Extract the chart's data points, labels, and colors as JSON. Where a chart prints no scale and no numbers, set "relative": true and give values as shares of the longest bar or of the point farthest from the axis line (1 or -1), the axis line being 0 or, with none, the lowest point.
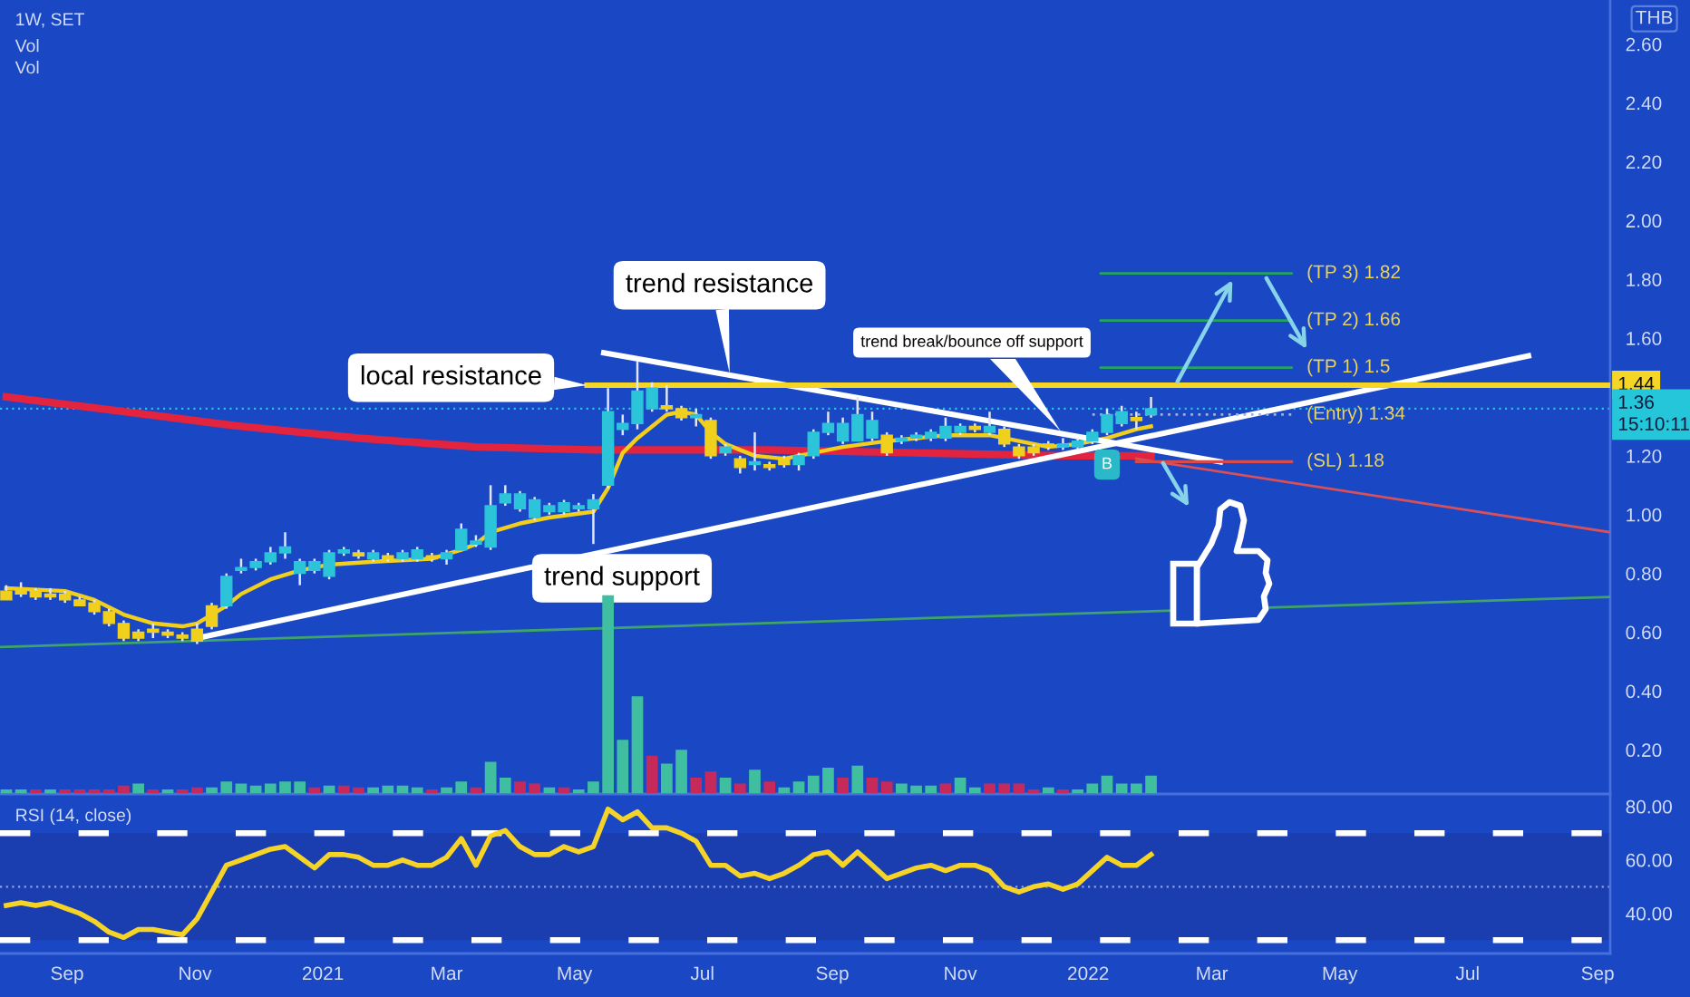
{
  "chart_data": [
    {
      "type": "candlestick",
      "title": "1W, SET",
      "ylabel": "THB",
      "x": [
        "2020-08-03",
        "2020-08-10",
        "2020-08-17",
        "2020-08-24",
        "2020-08-31",
        "2020-09-07",
        "2020-09-14",
        "2020-09-21",
        "2020-09-28",
        "2020-10-05",
        "2020-10-12",
        "2020-10-19",
        "2020-10-26",
        "2020-11-02",
        "2020-11-09",
        "2020-11-16",
        "2020-11-23",
        "2020-11-30",
        "2020-12-07",
        "2020-12-14",
        "2020-12-21",
        "2020-12-28",
        "2021-01-04",
        "2021-01-11",
        "2021-01-18",
        "2021-01-25",
        "2021-02-01",
        "2021-02-08",
        "2021-02-15",
        "2021-02-22",
        "2021-03-01",
        "2021-03-08",
        "2021-03-15",
        "2021-03-22",
        "2021-03-29",
        "2021-04-05",
        "2021-04-12",
        "2021-04-19",
        "2021-04-26",
        "2021-05-03",
        "2021-05-10",
        "2021-05-17",
        "2021-05-24",
        "2021-05-31",
        "2021-06-07",
        "2021-06-14",
        "2021-06-21",
        "2021-06-28",
        "2021-07-05",
        "2021-07-12",
        "2021-07-19",
        "2021-07-26",
        "2021-08-02",
        "2021-08-09",
        "2021-08-16",
        "2021-08-23",
        "2021-08-30",
        "2021-09-06",
        "2021-09-13",
        "2021-09-20",
        "2021-09-27",
        "2021-10-04",
        "2021-10-11",
        "2021-10-18",
        "2021-10-25",
        "2021-11-01",
        "2021-11-08",
        "2021-11-15",
        "2021-11-22",
        "2021-11-29",
        "2021-12-06",
        "2021-12-13",
        "2021-12-20",
        "2021-12-27",
        "2022-01-03",
        "2022-01-10",
        "2022-01-17",
        "2022-01-24",
        "2022-01-31"
      ],
      "ohlc": [
        [
          0.74,
          0.76,
          0.71,
          0.71
        ],
        [
          0.75,
          0.77,
          0.72,
          0.73
        ],
        [
          0.74,
          0.75,
          0.71,
          0.72
        ],
        [
          0.73,
          0.75,
          0.71,
          0.72
        ],
        [
          0.73,
          0.74,
          0.7,
          0.71
        ],
        [
          0.71,
          0.72,
          0.69,
          0.69
        ],
        [
          0.7,
          0.71,
          0.66,
          0.67
        ],
        [
          0.67,
          0.68,
          0.62,
          0.63
        ],
        [
          0.63,
          0.64,
          0.57,
          0.58
        ],
        [
          0.6,
          0.61,
          0.57,
          0.58
        ],
        [
          0.61,
          0.63,
          0.58,
          0.6
        ],
        [
          0.6,
          0.61,
          0.58,
          0.59
        ],
        [
          0.59,
          0.6,
          0.57,
          0.58
        ],
        [
          0.61,
          0.63,
          0.56,
          0.57
        ],
        [
          0.69,
          0.7,
          0.61,
          0.62
        ],
        [
          0.69,
          0.8,
          0.68,
          0.79
        ],
        [
          0.81,
          0.85,
          0.8,
          0.82
        ],
        [
          0.82,
          0.85,
          0.81,
          0.84
        ],
        [
          0.84,
          0.89,
          0.83,
          0.87
        ],
        [
          0.87,
          0.94,
          0.85,
          0.89
        ],
        [
          0.8,
          0.85,
          0.76,
          0.84
        ],
        [
          0.81,
          0.85,
          0.8,
          0.84
        ],
        [
          0.79,
          0.88,
          0.78,
          0.87
        ],
        [
          0.87,
          0.89,
          0.86,
          0.88
        ],
        [
          0.87,
          0.88,
          0.85,
          0.86
        ],
        [
          0.85,
          0.88,
          0.84,
          0.87
        ],
        [
          0.86,
          0.87,
          0.84,
          0.85
        ],
        [
          0.85,
          0.88,
          0.84,
          0.87
        ],
        [
          0.85,
          0.89,
          0.84,
          0.88
        ],
        [
          0.86,
          0.87,
          0.84,
          0.85
        ],
        [
          0.85,
          0.88,
          0.83,
          0.87
        ],
        [
          0.88,
          0.97,
          0.88,
          0.95
        ],
        [
          0.9,
          0.93,
          0.89,
          0.91
        ],
        [
          0.89,
          1.1,
          0.88,
          1.03
        ],
        [
          1.04,
          1.1,
          1.03,
          1.07
        ],
        [
          1.02,
          1.08,
          1.01,
          1.07
        ],
        [
          0.99,
          1.06,
          0.98,
          1.05
        ],
        [
          1.01,
          1.04,
          1.0,
          1.03
        ],
        [
          1.01,
          1.05,
          1.0,
          1.04
        ],
        [
          1.02,
          1.04,
          1.01,
          1.03
        ],
        [
          1.02,
          1.07,
          0.9,
          1.05
        ],
        [
          1.1,
          1.43,
          1.09,
          1.35
        ],
        [
          1.29,
          1.34,
          1.27,
          1.31
        ],
        [
          1.31,
          1.52,
          1.29,
          1.42
        ],
        [
          1.36,
          1.45,
          1.35,
          1.43
        ],
        [
          1.37,
          1.44,
          1.35,
          1.36
        ],
        [
          1.36,
          1.37,
          1.32,
          1.33
        ],
        [
          1.33,
          1.36,
          1.3,
          1.34
        ],
        [
          1.32,
          1.33,
          1.19,
          1.2
        ],
        [
          1.21,
          1.24,
          1.2,
          1.23
        ],
        [
          1.19,
          1.2,
          1.14,
          1.16
        ],
        [
          1.17,
          1.28,
          1.15,
          1.18
        ],
        [
          1.17,
          1.18,
          1.15,
          1.16
        ],
        [
          1.19,
          1.2,
          1.16,
          1.17
        ],
        [
          1.17,
          1.21,
          1.15,
          1.2
        ],
        [
          1.2,
          1.29,
          1.19,
          1.28
        ],
        [
          1.28,
          1.35,
          1.27,
          1.31
        ],
        [
          1.25,
          1.33,
          1.24,
          1.31
        ],
        [
          1.25,
          1.4,
          1.25,
          1.34
        ],
        [
          1.26,
          1.35,
          1.25,
          1.32
        ],
        [
          1.27,
          1.28,
          1.2,
          1.21
        ],
        [
          1.25,
          1.27,
          1.24,
          1.26
        ],
        [
          1.26,
          1.28,
          1.25,
          1.27
        ],
        [
          1.26,
          1.29,
          1.25,
          1.28
        ],
        [
          1.26,
          1.33,
          1.25,
          1.3
        ],
        [
          1.28,
          1.31,
          1.27,
          1.3
        ],
        [
          1.3,
          1.31,
          1.28,
          1.29
        ],
        [
          1.28,
          1.35,
          1.27,
          1.3
        ],
        [
          1.29,
          1.3,
          1.23,
          1.24
        ],
        [
          1.23,
          1.24,
          1.19,
          1.2
        ],
        [
          1.23,
          1.24,
          1.2,
          1.21
        ],
        [
          1.24,
          1.25,
          1.22,
          1.23
        ],
        [
          1.23,
          1.26,
          1.22,
          1.24
        ],
        [
          1.23,
          1.26,
          1.22,
          1.25
        ],
        [
          1.25,
          1.29,
          1.24,
          1.28
        ],
        [
          1.28,
          1.36,
          1.27,
          1.34
        ],
        [
          1.31,
          1.37,
          1.3,
          1.35
        ],
        [
          1.33,
          1.35,
          1.29,
          1.32
        ],
        [
          1.34,
          1.4,
          1.33,
          1.36
        ]
      ],
      "colors": [
        "#f0d01c",
        "#f0d01c",
        "#f0d01c",
        "#f0d01c",
        "#f0d01c",
        "#f0d01c",
        "#f0d01c",
        "#f0d01c",
        "#f0d01c",
        "#f0d01c",
        "#f0d01c",
        "#f0d01c",
        "#f0d01c",
        "#f0d01c",
        "#f0d01c",
        "#2bc4d8",
        "#2bc4d8",
        "#2bc4d8",
        "#2bc4d8",
        "#2bc4d8",
        "#2bc4d8",
        "#2bc4d8",
        "#2bc4d8",
        "#2bc4d8",
        "#f0d01c",
        "#2bc4d8",
        "#f0d01c",
        "#2bc4d8",
        "#2bc4d8",
        "#f0d01c",
        "#2bc4d8",
        "#2bc4d8",
        "#2bc4d8",
        "#2bc4d8",
        "#2bc4d8",
        "#2bc4d8",
        "#2bc4d8",
        "#2bc4d8",
        "#2bc4d8",
        "#2bc4d8",
        "#2bc4d8",
        "#2bc4d8",
        "#2bc4d8",
        "#2bc4d8",
        "#2bc4d8",
        "#f0d01c",
        "#f0d01c",
        "#2bc4d8",
        "#f0d01c",
        "#2bc4d8",
        "#f0d01c",
        "#2bc4d8",
        "#f0d01c",
        "#f0d01c",
        "#2bc4d8",
        "#2bc4d8",
        "#2bc4d8",
        "#2bc4d8",
        "#2bc4d8",
        "#2bc4d8",
        "#f0d01c",
        "#2bc4d8",
        "#2bc4d8",
        "#2bc4d8",
        "#2bc4d8",
        "#2bc4d8",
        "#f0d01c",
        "#2bc4d8",
        "#f0d01c",
        "#f0d01c",
        "#f0d01c",
        "#f0d01c",
        "#2bc4d8",
        "#2bc4d8",
        "#2bc4d8",
        "#2bc4d8",
        "#2bc4d8",
        "#f0d01c",
        "#2bc4d8"
      ],
      "series": [
        {
          "type": "line",
          "x": [
            "2020-07-31",
            "2022-09-07"
          ],
          "values": [
            0.55,
            0.72
          ],
          "color": "#3fa46a"
        },
        {
          "type": "line",
          "x": [
            "2020-08-03",
            "2020-09-28",
            "2020-11-23",
            "2021-01-18",
            "2021-03-15",
            "2021-05-10",
            "2021-08-02",
            "2021-10-11",
            "2021-12-20",
            "2022-01-31"
          ],
          "values": [
            1.4,
            1.35,
            1.3,
            1.26,
            1.23,
            1.22,
            1.22,
            1.21,
            1.2,
            1.2
          ],
          "color": "#e3243f"
        },
        {
          "type": "line",
          "x": [
            "2020-08-03",
            "2020-08-31",
            "2020-09-14",
            "2020-09-28",
            "2020-10-12",
            "2020-10-26",
            "2020-11-02",
            "2020-11-09",
            "2020-11-16",
            "2020-11-23",
            "2020-12-07",
            "2020-12-21",
            "2021-01-04",
            "2021-01-25",
            "2021-02-22",
            "2021-03-08",
            "2021-03-15",
            "2021-03-22",
            "2021-04-05",
            "2021-04-19",
            "2021-05-10",
            "2021-05-17",
            "2021-05-24",
            "2021-05-31",
            "2021-06-07",
            "2021-06-14",
            "2021-06-21",
            "2021-06-28",
            "2021-07-05",
            "2021-07-12",
            "2021-07-26",
            "2021-08-09",
            "2021-08-23",
            "2021-09-06",
            "2021-09-27",
            "2021-10-25",
            "2021-11-15",
            "2021-11-29",
            "2021-12-13",
            "2021-12-27",
            "2022-01-10",
            "2022-01-24",
            "2022-01-31"
          ],
          "values": [
            0.75,
            0.74,
            0.71,
            0.66,
            0.63,
            0.62,
            0.63,
            0.66,
            0.69,
            0.73,
            0.78,
            0.81,
            0.83,
            0.84,
            0.85,
            0.88,
            0.9,
            0.94,
            0.97,
            0.99,
            1.01,
            1.09,
            1.21,
            1.26,
            1.3,
            1.34,
            1.35,
            1.34,
            1.28,
            1.24,
            1.2,
            1.19,
            1.21,
            1.23,
            1.25,
            1.27,
            1.27,
            1.25,
            1.23,
            1.24,
            1.26,
            1.29,
            1.3
          ],
          "color": "#f2cf1d"
        },
        {
          "type": "line",
          "x": [
            "2020-11-02",
            "2022-07-30"
          ],
          "values": [
            0.58,
            1.54
          ],
          "color": "#ffffff"
        },
        {
          "type": "line",
          "x": [
            "2021-05-15",
            "2022-03-05"
          ],
          "values": [
            1.55,
            1.18
          ],
          "color": "#ffffff"
        },
        {
          "type": "line",
          "x": [
            "2022-01-24",
            "2022-09-07"
          ],
          "values": [
            1.19,
            0.94
          ],
          "color": "#d8505a"
        },
        {
          "type": "line",
          "x": [
            "2021-05-07",
            "2022-09-07"
          ],
          "values": [
            1.44,
            1.44
          ],
          "color": "#f5d526",
          "value_labels": [
            null,
            "1.44"
          ]
        },
        {
          "type": "line",
          "name": "(TP 3) 1.82",
          "x": [
            "2022-01-07",
            "2022-04-08"
          ],
          "values": [
            1.82,
            1.82
          ],
          "color": "#23a45f"
        },
        {
          "type": "line",
          "name": "(TP 2) 1.66",
          "x": [
            "2022-01-07",
            "2022-04-08"
          ],
          "values": [
            1.66,
            1.66
          ],
          "color": "#23a45f"
        },
        {
          "type": "line",
          "name": "(TP 1) 1.5",
          "x": [
            "2022-01-07",
            "2022-04-08"
          ],
          "values": [
            1.5,
            1.5
          ],
          "color": "#23a45f"
        },
        {
          "type": "line",
          "name": "(Entry) 1.34",
          "x": [
            "2022-01-03",
            "2022-04-08"
          ],
          "values": [
            1.34,
            1.34
          ],
          "color": "#9fb3e0",
          "line_style": "dotted"
        },
        {
          "type": "line",
          "name": "(SL) 1.18",
          "x": [
            "2022-01-24",
            "2022-04-08"
          ],
          "values": [
            1.18,
            1.18
          ],
          "color": "#d94a4a"
        }
      ],
      "xlim": [
        "2020-07-31",
        "2022-09-07"
      ],
      "ylim": [
        0.05,
        2.75
      ],
      "yticks": [
        {
          "value": 0.2,
          "label": "0.20"
        },
        {
          "value": 0.4,
          "label": "0.40"
        },
        {
          "value": 0.6,
          "label": "0.60"
        },
        {
          "value": 0.8,
          "label": "0.80"
        },
        {
          "value": 1,
          "label": "1.00"
        },
        {
          "value": 1.2,
          "label": "1.20"
        },
        {
          "value": 1.6,
          "label": "1.60"
        },
        {
          "value": 1.8,
          "label": "1.80"
        },
        {
          "value": 2,
          "label": "2.00"
        },
        {
          "value": 2.2,
          "label": "2.20"
        },
        {
          "value": 2.4,
          "label": "2.40"
        },
        {
          "value": 2.6,
          "label": "2.60"
        }
      ],
      "tick_labels": "y",
      "ref_lines": [
        {
          "axis": "y",
          "value": 1.36,
          "label": "1.36\n15:10:11",
          "color": "#26c6da",
          "line_style": "dotted"
        }
      ],
      "annotations": [
        "Vol",
        "Vol",
        "trend support",
        "trend break/bounce off support",
        {
          "text": "trend resistance",
          "x": "2021-07-14",
          "y": 1.48
        },
        {
          "text": "local resistance",
          "x": "2021-05-07",
          "y": 1.44
        },
        {
          "text": "B",
          "x": "2022-01-10",
          "y": 1.17
        }
      ]
    },
    {
      "type": "bar",
      "relative": true,
      "x": [
        "2020-08-03",
        "2020-08-10",
        "2020-08-17",
        "2020-08-24",
        "2020-08-31",
        "2020-09-07",
        "2020-09-14",
        "2020-09-21",
        "2020-09-28",
        "2020-10-05",
        "2020-10-12",
        "2020-10-19",
        "2020-10-26",
        "2020-11-02",
        "2020-11-09",
        "2020-11-16",
        "2020-11-23",
        "2020-11-30",
        "2020-12-07",
        "2020-12-14",
        "2020-12-21",
        "2020-12-28",
        "2021-01-04",
        "2021-01-11",
        "2021-01-18",
        "2021-01-25",
        "2021-02-01",
        "2021-02-08",
        "2021-02-15",
        "2021-02-22",
        "2021-03-01",
        "2021-03-08",
        "2021-03-15",
        "2021-03-22",
        "2021-03-29",
        "2021-04-05",
        "2021-04-12",
        "2021-04-19",
        "2021-04-26",
        "2021-05-03",
        "2021-05-10",
        "2021-05-17",
        "2021-05-24",
        "2021-05-31",
        "2021-06-07",
        "2021-06-14",
        "2021-06-21",
        "2021-06-28",
        "2021-07-05",
        "2021-07-12",
        "2021-07-19",
        "2021-07-26",
        "2021-08-02",
        "2021-08-09",
        "2021-08-16",
        "2021-08-23",
        "2021-08-30",
        "2021-09-06",
        "2021-09-13",
        "2021-09-20",
        "2021-09-27",
        "2021-10-04",
        "2021-10-11",
        "2021-10-18",
        "2021-10-25",
        "2021-11-01",
        "2021-11-08",
        "2021-11-15",
        "2021-11-22",
        "2021-11-29",
        "2021-12-06",
        "2021-12-13",
        "2021-12-20",
        "2021-12-27",
        "2022-01-03",
        "2022-01-10",
        "2022-01-17",
        "2022-01-24",
        "2022-01-31"
      ],
      "values": [
        0.02,
        0.02,
        0.02,
        0.02,
        0.02,
        0.02,
        0.02,
        0.02,
        0.04,
        0.05,
        0.02,
        0.02,
        0.02,
        0.03,
        0.03,
        0.06,
        0.05,
        0.04,
        0.05,
        0.06,
        0.06,
        0.03,
        0.04,
        0.04,
        0.03,
        0.03,
        0.04,
        0.04,
        0.03,
        0.02,
        0.03,
        0.06,
        0.03,
        0.16,
        0.08,
        0.06,
        0.05,
        0.03,
        0.03,
        0.02,
        0.06,
        1,
        0.27,
        0.49,
        0.19,
        0.15,
        0.22,
        0.08,
        0.11,
        0.08,
        0.05,
        0.12,
        0.06,
        0.03,
        0.06,
        0.09,
        0.13,
        0.08,
        0.14,
        0.08,
        0.06,
        0.05,
        0.04,
        0.04,
        0.05,
        0.08,
        0.03,
        0.05,
        0.05,
        0.05,
        0.02,
        0.03,
        0.02,
        0.02,
        0.05,
        0.09,
        0.05,
        0.05,
        0.09
      ],
      "colors": [
        "#3fbf9f",
        "#3fbf9f",
        "#c62a5b",
        "#3fbf9f",
        "#c62a5b",
        "#c62a5b",
        "#c62a5b",
        "#c62a5b",
        "#c62a5b",
        "#3fbf9f",
        "#c62a5b",
        "#3fbf9f",
        "#c62a5b",
        "#c62a5b",
        "#3fbf9f",
        "#3fbf9f",
        "#3fbf9f",
        "#3fbf9f",
        "#3fbf9f",
        "#3fbf9f",
        "#3fbf9f",
        "#c62a5b",
        "#3fbf9f",
        "#c62a5b",
        "#c62a5b",
        "#3fbf9f",
        "#3fbf9f",
        "#3fbf9f",
        "#3fbf9f",
        "#c62a5b",
        "#3fbf9f",
        "#3fbf9f",
        "#c62a5b",
        "#3fbf9f",
        "#3fbf9f",
        "#c62a5b",
        "#c62a5b",
        "#3fbf9f",
        "#c62a5b",
        "#3fbf9f",
        "#3fbf9f",
        "#3fbf9f",
        "#3fbf9f",
        "#3fbf9f",
        "#c62a5b",
        "#3fbf9f",
        "#3fbf9f",
        "#c62a5b",
        "#c62a5b",
        "#3fbf9f",
        "#c62a5b",
        "#3fbf9f",
        "#c62a5b",
        "#3fbf9f",
        "#3fbf9f",
        "#3fbf9f",
        "#3fbf9f",
        "#c62a5b",
        "#3fbf9f",
        "#c62a5b",
        "#c62a5b",
        "#3fbf9f",
        "#3fbf9f",
        "#3fbf9f",
        "#c62a5b",
        "#3fbf9f",
        "#3fbf9f",
        "#c62a5b",
        "#c62a5b",
        "#c62a5b",
        "#c62a5b",
        "#3fbf9f",
        "#c62a5b",
        "#3fbf9f",
        "#3fbf9f",
        "#3fbf9f",
        "#3fbf9f",
        "#3fbf9f",
        "#3fbf9f"
      ],
      "xlim": [
        "2020-07-31",
        "2022-09-07"
      ]
    },
    {
      "type": "line",
      "title": "RSI (14, close)",
      "color": "#f5d327",
      "x": [
        "2020-08-03",
        "2020-08-10",
        "2020-08-17",
        "2020-08-24",
        "2020-08-31",
        "2020-09-07",
        "2020-09-14",
        "2020-09-21",
        "2020-09-28",
        "2020-10-05",
        "2020-10-12",
        "2020-10-19",
        "2020-10-26",
        "2020-11-02",
        "2020-11-09",
        "2020-11-16",
        "2020-11-23",
        "2020-11-30",
        "2020-12-07",
        "2020-12-14",
        "2020-12-21",
        "2020-12-28",
        "2021-01-04",
        "2021-01-11",
        "2021-01-18",
        "2021-01-25",
        "2021-02-01",
        "2021-02-08",
        "2021-02-15",
        "2021-02-22",
        "2021-03-01",
        "2021-03-08",
        "2021-03-15",
        "2021-03-22",
        "2021-03-29",
        "2021-04-05",
        "2021-04-12",
        "2021-04-19",
        "2021-04-26",
        "2021-05-03",
        "2021-05-10",
        "2021-05-17",
        "2021-05-24",
        "2021-05-31",
        "2021-06-07",
        "2021-06-14",
        "2021-06-21",
        "2021-06-28",
        "2021-07-05",
        "2021-07-12",
        "2021-07-19",
        "2021-07-26",
        "2021-08-02",
        "2021-08-09",
        "2021-08-16",
        "2021-08-23",
        "2021-08-30",
        "2021-09-06",
        "2021-09-13",
        "2021-09-20",
        "2021-09-27",
        "2021-10-04",
        "2021-10-11",
        "2021-10-18",
        "2021-10-25",
        "2021-11-01",
        "2021-11-08",
        "2021-11-15",
        "2021-11-22",
        "2021-11-29",
        "2021-12-06",
        "2021-12-13",
        "2021-12-20",
        "2021-12-27",
        "2022-01-03",
        "2022-01-10",
        "2022-01-17",
        "2022-01-24",
        "2022-01-31"
      ],
      "values": [
        43,
        44,
        43,
        44,
        42,
        40,
        37,
        33,
        31,
        34,
        34,
        33,
        32,
        38,
        48,
        58,
        60,
        62,
        64,
        65,
        61,
        57,
        62,
        62,
        61,
        58,
        58,
        60,
        58,
        58,
        61,
        68,
        58,
        69,
        71,
        65,
        62,
        62,
        65,
        63,
        65,
        79,
        75,
        78,
        72,
        72,
        70,
        67,
        58,
        58,
        54,
        55,
        53,
        55,
        58,
        62,
        63,
        58,
        63,
        58,
        53,
        55,
        57,
        58,
        56,
        58,
        58,
        56,
        50,
        48,
        50,
        51,
        49,
        51,
        56,
        61,
        58,
        58,
        62
      ],
      "xlim": [
        "2020-07-31",
        "2022-09-07"
      ],
      "ylim": [
        25,
        84
      ],
      "yticks": [
        {
          "value": 40,
          "label": "40.00"
        },
        {
          "value": 60,
          "label": "60.00"
        },
        {
          "value": 80,
          "label": "80.00"
        }
      ],
      "xticks": [
        {
          "value": "2020-09-01",
          "label": "Sep"
        },
        {
          "value": "2020-11-01",
          "label": "Nov"
        },
        {
          "value": "2021-01-01",
          "label": "2021"
        },
        {
          "value": "2021-03-01",
          "label": "Mar"
        },
        {
          "value": "2021-05-01",
          "label": "May"
        },
        {
          "value": "2021-07-01",
          "label": "Jul"
        },
        {
          "value": "2021-09-01",
          "label": "Sep"
        },
        {
          "value": "2021-11-01",
          "label": "Nov"
        },
        {
          "value": "2022-01-01",
          "label": "2022"
        },
        {
          "value": "2022-03-01",
          "label": "Mar"
        },
        {
          "value": "2022-05-01",
          "label": "May"
        },
        {
          "value": "2022-07-01",
          "label": "Jul"
        },
        {
          "value": "2022-09-01",
          "label": "Sep"
        }
      ],
      "ref_lines": [
        {
          "axis": "y",
          "value": 70,
          "color": "#ffffff",
          "line_style": "dashed"
        },
        {
          "axis": "y",
          "value": 30,
          "color": "#ffffff",
          "line_style": "dashed"
        },
        {
          "axis": "y",
          "value": 50,
          "color": "#8fa8e0",
          "line_style": "dotted"
        }
      ],
      "bands": [
        {
          "axis": "y",
          "from": 30,
          "to": 70,
          "color": "#1a3db0"
        }
      ]
    }
  ]
}
